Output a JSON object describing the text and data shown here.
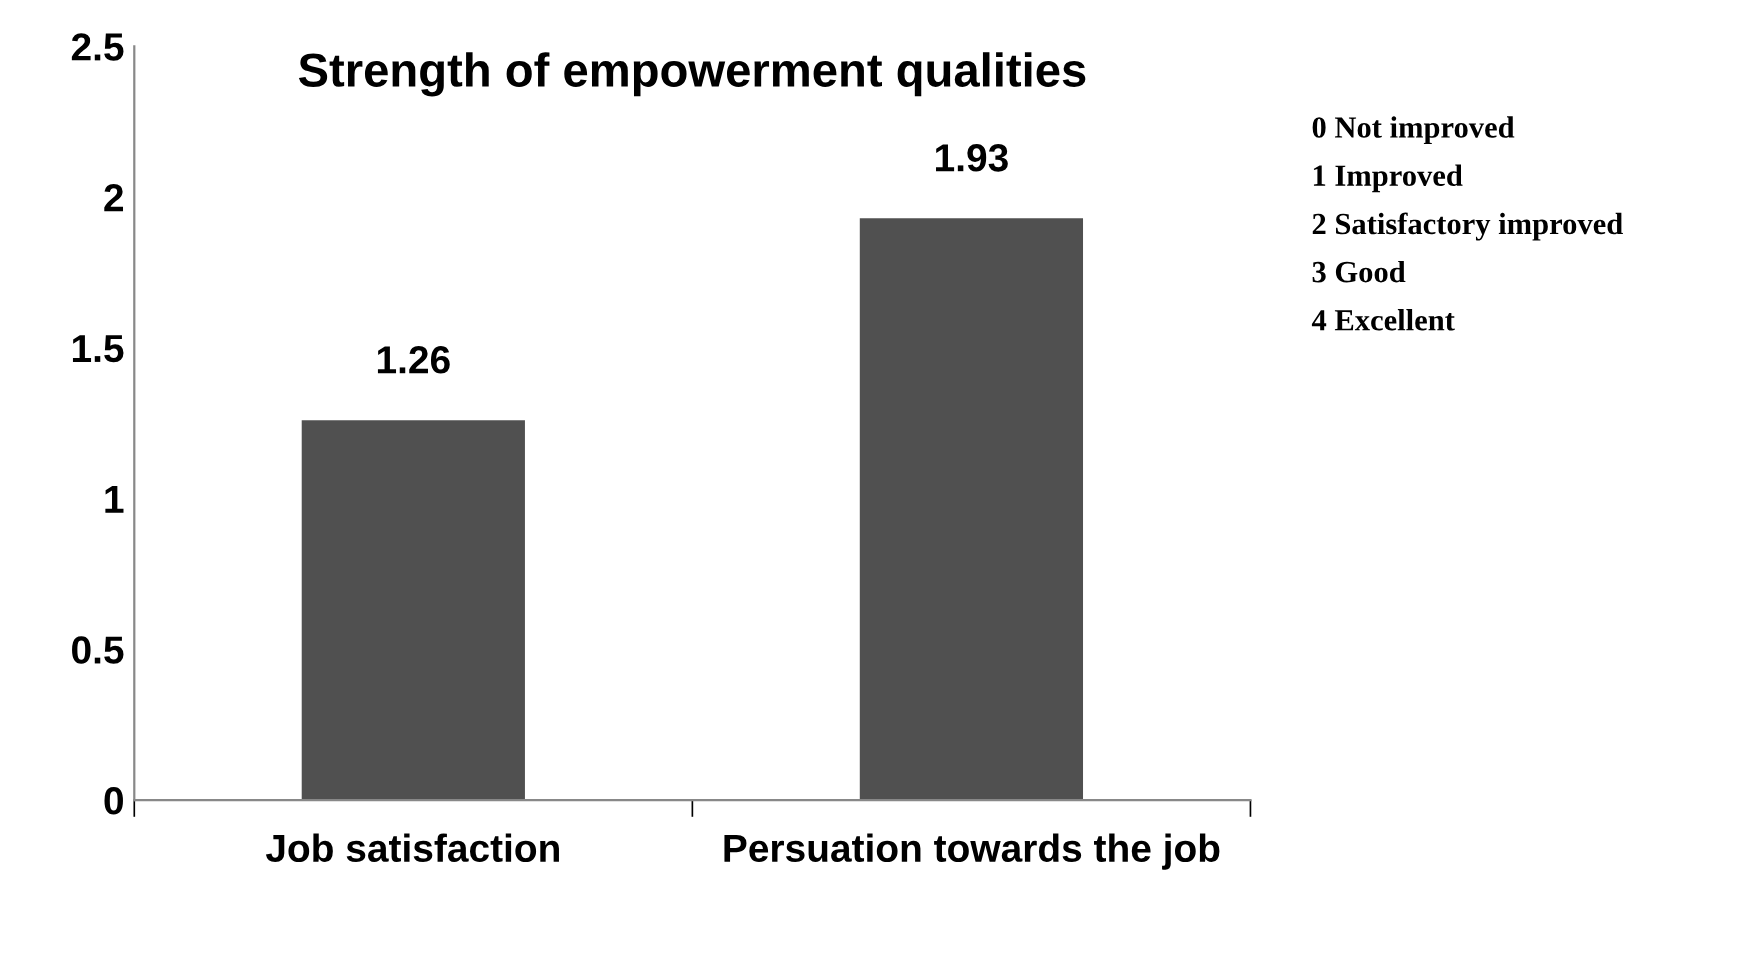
{
  "chart_data": {
    "type": "bar",
    "title": "Strength of empowerment qualities",
    "categories": [
      "Job satisfaction",
      "Persuation towards the job"
    ],
    "values": [
      1.26,
      1.93
    ],
    "color": "#505050",
    "ylim": [
      0,
      2.5
    ],
    "yticks": [
      0,
      0.5,
      1,
      1.5,
      2,
      2.5
    ],
    "grid": false,
    "data_labels": true,
    "annotations": [
      "0 Not improved",
      "1 Improved",
      "2 Satisfactory improved",
      "3 Good",
      "4 Excellent"
    ]
  }
}
